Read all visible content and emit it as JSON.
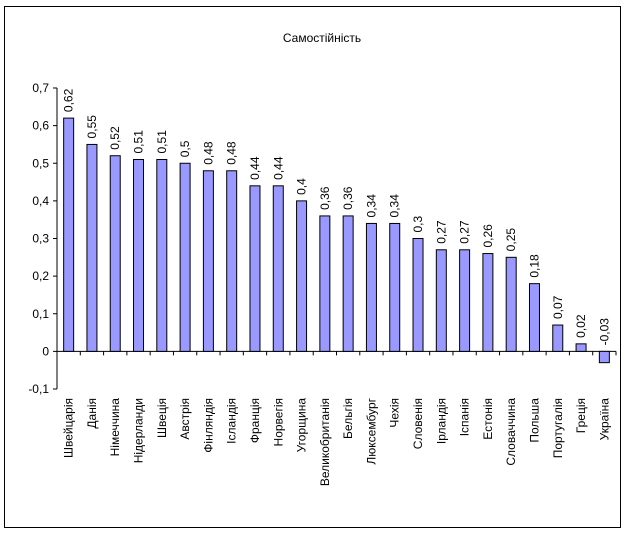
{
  "chart_data": {
    "type": "bar",
    "title": "Самостійність",
    "xlabel": "",
    "ylabel": "",
    "ylim": [
      -0.1,
      0.7
    ],
    "yticks": [
      "-0,1",
      "0",
      "0,1",
      "0,2",
      "0,3",
      "0,4",
      "0,5",
      "0,6",
      "0,7"
    ],
    "categories": [
      "Швейцарія",
      "Данія",
      "Німеччина",
      "Нідерланди",
      "Швеція",
      "Австрія",
      "Фінляндія",
      "Ісландія",
      "Франція",
      "Норвегія",
      "Угорщина",
      "Великобританія",
      "Бельгія",
      "Люксембург",
      "Чехія",
      "Словенія",
      "Ірландія",
      "Іспанія",
      "Естонія",
      "Словаччина",
      "Польша",
      "Португалія",
      "Греція",
      "Україна"
    ],
    "values": [
      0.62,
      0.55,
      0.52,
      0.51,
      0.51,
      0.5,
      0.48,
      0.48,
      0.44,
      0.44,
      0.4,
      0.36,
      0.36,
      0.34,
      0.34,
      0.3,
      0.27,
      0.27,
      0.26,
      0.25,
      0.18,
      0.07,
      0.02,
      -0.03
    ],
    "data_labels": [
      "0,62",
      "0,55",
      "0,52",
      "0,51",
      "0,51",
      "0,5",
      "0,48",
      "0,48",
      "0,44",
      "0,44",
      "0,4",
      "0,36",
      "0,36",
      "0,34",
      "0,34",
      "0,3",
      "0,27",
      "0,27",
      "0,26",
      "0,25",
      "0,18",
      "0,07",
      "0,02",
      "-0,03"
    ],
    "bar_color": "#9999ff",
    "grid": false,
    "legend": "none"
  }
}
